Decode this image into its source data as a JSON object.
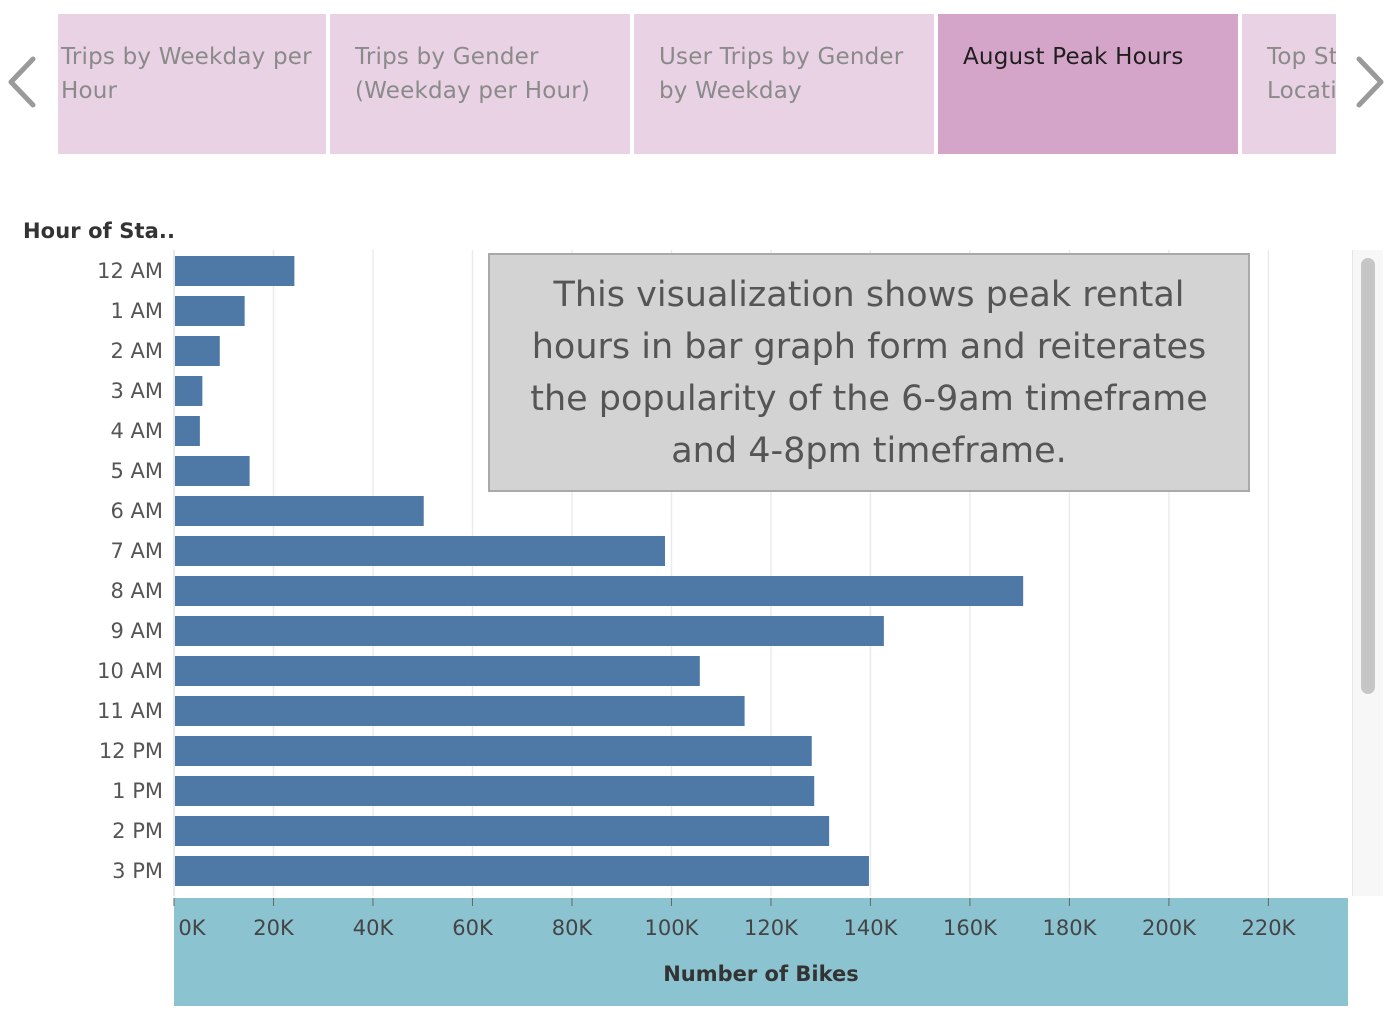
{
  "story": {
    "tabs": [
      {
        "label": "Trips by Weekday per\nHour",
        "active": false
      },
      {
        "label": "Trips by Gender\n(Weekday per Hour)",
        "active": false
      },
      {
        "label": "User Trips by Gender\nby Weekday",
        "active": false
      },
      {
        "label": "August Peak Hours",
        "active": true
      },
      {
        "label": "Top Start\nLocations",
        "active": false
      }
    ],
    "prev_icon": "chevron-left-icon",
    "next_icon": "chevron-right-icon"
  },
  "annotation": {
    "text": "This visualization shows peak rental hours in bar graph form and reiterates the popularity of the 6-9am timeframe and 4-8pm timeframe."
  },
  "colors": {
    "bar": "#4e79a7",
    "active_tab": "#d4a5c8",
    "tab": "#e8d2e4",
    "x_axis_band": "#8cc3d1"
  },
  "chart_data": {
    "type": "bar",
    "orientation": "horizontal",
    "ylabel": "Hour of Sta..",
    "xlabel": "Number of Bikes",
    "categories": [
      "12 AM",
      "1 AM",
      "2 AM",
      "3 AM",
      "4 AM",
      "5 AM",
      "6 AM",
      "7 AM",
      "8 AM",
      "9 AM",
      "10 AM",
      "11 AM",
      "12 PM",
      "1 PM",
      "2 PM",
      "3 PM"
    ],
    "values": [
      24000,
      14000,
      9000,
      5500,
      5000,
      15000,
      50000,
      98500,
      170500,
      142500,
      105500,
      114500,
      128000,
      128500,
      131500,
      139500
    ],
    "xlim": [
      0,
      236000
    ],
    "x_ticks": [
      0,
      20000,
      40000,
      60000,
      80000,
      100000,
      120000,
      140000,
      160000,
      180000,
      200000,
      220000
    ],
    "x_tick_labels": [
      "0K",
      "20K",
      "40K",
      "60K",
      "80K",
      "100K",
      "120K",
      "140K",
      "160K",
      "180K",
      "200K",
      "220K"
    ],
    "grid": "vertical",
    "scrollable": true
  }
}
